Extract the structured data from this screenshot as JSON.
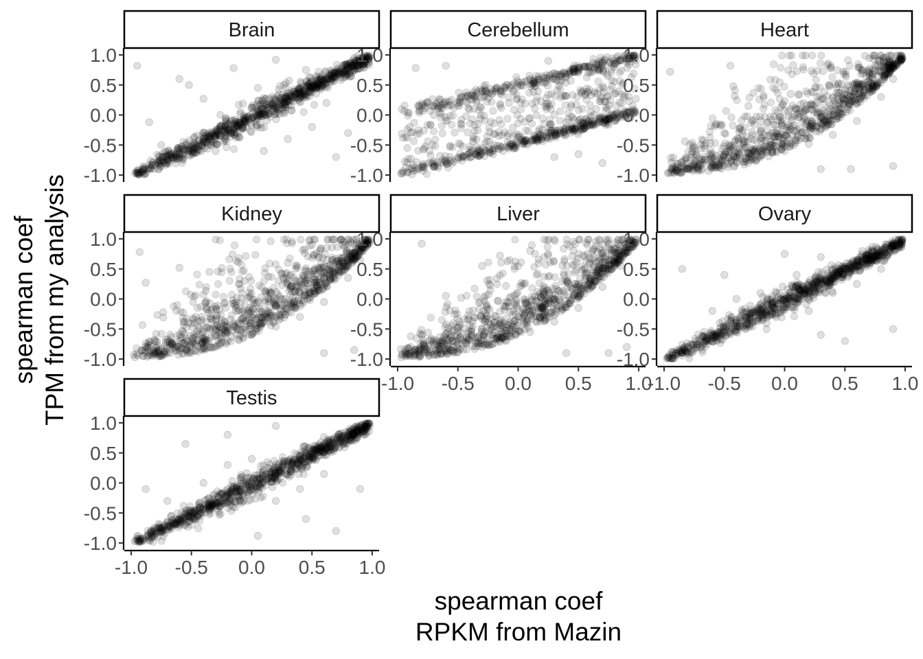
{
  "chart_data": {
    "type": "scatter",
    "layout": "facet_wrap",
    "ncol": 3,
    "xlabel_lines": [
      "spearman coef",
      "RPKM from Mazin"
    ],
    "ylabel_lines": [
      "spearman coef",
      "TPM from my analysis"
    ],
    "xlim": [
      -1.0,
      1.0
    ],
    "ylim": [
      -1.0,
      1.0
    ],
    "x_ticks": [
      -1.0,
      -0.5,
      0.0,
      0.5,
      1.0
    ],
    "y_ticks": [
      -1.0,
      -0.5,
      0.0,
      0.5,
      1.0
    ],
    "x_tick_labels": [
      "-1.0",
      "-0.5",
      "0.0",
      "0.5",
      "1.0"
    ],
    "y_tick_labels": [
      "-1.0",
      "-0.5",
      "0.0",
      "0.5",
      "1.0"
    ],
    "point_color": "#000000",
    "point_alpha": 0.12,
    "grid": false,
    "legend": "none",
    "panels": [
      {
        "name": "Brain",
        "pattern": "diagonal",
        "points": [
          [
            -0.97,
            -0.97
          ],
          [
            -0.95,
            -0.96
          ],
          [
            -0.9,
            -0.92
          ],
          [
            -0.85,
            -0.88
          ],
          [
            -0.8,
            -0.83
          ],
          [
            -0.7,
            -0.73
          ],
          [
            -0.6,
            -0.64
          ],
          [
            -0.5,
            -0.55
          ],
          [
            -0.4,
            -0.46
          ],
          [
            -0.3,
            -0.37
          ],
          [
            -0.2,
            -0.26
          ],
          [
            -0.1,
            -0.16
          ],
          [
            0.0,
            -0.06
          ],
          [
            0.1,
            0.03
          ],
          [
            0.2,
            0.13
          ],
          [
            0.3,
            0.24
          ],
          [
            0.4,
            0.35
          ],
          [
            0.5,
            0.47
          ],
          [
            0.6,
            0.58
          ],
          [
            0.7,
            0.69
          ],
          [
            0.8,
            0.8
          ],
          [
            0.9,
            0.9
          ],
          [
            0.97,
            0.97
          ],
          [
            -0.95,
            0.82
          ],
          [
            -0.85,
            -0.12
          ],
          [
            -0.75,
            -0.5
          ],
          [
            -0.6,
            0.6
          ],
          [
            -0.52,
            0.5
          ],
          [
            -0.4,
            0.27
          ],
          [
            -0.3,
            -0.6
          ],
          [
            -0.15,
            0.78
          ],
          [
            0.05,
            0.45
          ],
          [
            0.1,
            -0.6
          ],
          [
            0.2,
            0.92
          ],
          [
            0.3,
            -0.4
          ],
          [
            0.45,
            0.75
          ],
          [
            0.5,
            -0.2
          ],
          [
            0.62,
            0.2
          ],
          [
            0.7,
            -0.7
          ],
          [
            0.8,
            -0.3
          ],
          [
            0.85,
            0.95
          ]
        ]
      },
      {
        "name": "Cerebellum",
        "pattern": "band",
        "points": [
          [
            -0.97,
            -0.97
          ],
          [
            -0.9,
            -0.9
          ],
          [
            -0.8,
            -0.86
          ],
          [
            -0.6,
            -0.76
          ],
          [
            -0.4,
            -0.63
          ],
          [
            -0.2,
            -0.5
          ],
          [
            0.0,
            -0.37
          ],
          [
            0.2,
            -0.25
          ],
          [
            0.4,
            -0.12
          ],
          [
            0.6,
            0.05
          ],
          [
            0.8,
            0.35
          ],
          [
            0.95,
            0.97
          ],
          [
            -0.9,
            -0.2
          ],
          [
            -0.7,
            0.0
          ],
          [
            -0.5,
            0.2
          ],
          [
            -0.3,
            0.4
          ],
          [
            -0.1,
            0.5
          ],
          [
            0.1,
            0.6
          ],
          [
            0.3,
            0.7
          ],
          [
            0.5,
            0.78
          ],
          [
            0.7,
            0.85
          ],
          [
            0.9,
            0.93
          ],
          [
            -0.85,
            0.78
          ],
          [
            -0.6,
            0.82
          ],
          [
            0.25,
            0.9
          ],
          [
            0.3,
            -0.7
          ],
          [
            0.5,
            -0.65
          ],
          [
            0.7,
            -0.8
          ]
        ]
      },
      {
        "name": "Heart",
        "pattern": "curve",
        "points": [
          [
            -0.97,
            -0.97
          ],
          [
            -0.9,
            -0.94
          ],
          [
            -0.8,
            -0.9
          ],
          [
            -0.6,
            -0.85
          ],
          [
            -0.4,
            -0.78
          ],
          [
            -0.2,
            -0.7
          ],
          [
            0.0,
            -0.6
          ],
          [
            0.2,
            -0.48
          ],
          [
            0.4,
            -0.33
          ],
          [
            0.6,
            -0.1
          ],
          [
            0.8,
            0.3
          ],
          [
            0.9,
            0.6
          ],
          [
            0.96,
            0.95
          ],
          [
            -0.5,
            -0.3
          ],
          [
            -0.2,
            -0.1
          ],
          [
            0.1,
            0.1
          ],
          [
            0.4,
            0.3
          ],
          [
            0.6,
            0.5
          ],
          [
            0.7,
            0.7
          ],
          [
            0.8,
            0.8
          ],
          [
            -0.95,
            0.72
          ],
          [
            -0.45,
            0.82
          ],
          [
            -0.3,
            0.15
          ],
          [
            0.05,
            0.35
          ],
          [
            0.3,
            -0.9
          ],
          [
            0.55,
            -0.9
          ],
          [
            0.9,
            -0.85
          ]
        ]
      },
      {
        "name": "Kidney",
        "pattern": "curve",
        "points": [
          [
            -0.97,
            -0.97
          ],
          [
            -0.9,
            -0.95
          ],
          [
            -0.8,
            -0.92
          ],
          [
            -0.6,
            -0.86
          ],
          [
            -0.4,
            -0.8
          ],
          [
            -0.2,
            -0.7
          ],
          [
            0.0,
            -0.6
          ],
          [
            0.2,
            -0.46
          ],
          [
            0.4,
            -0.3
          ],
          [
            0.6,
            -0.05
          ],
          [
            0.8,
            0.35
          ],
          [
            0.9,
            0.65
          ],
          [
            0.96,
            0.97
          ],
          [
            -0.3,
            -0.5
          ],
          [
            0.0,
            -0.3
          ],
          [
            0.2,
            -0.1
          ],
          [
            0.4,
            0.1
          ],
          [
            0.6,
            0.35
          ],
          [
            0.75,
            0.6
          ],
          [
            -0.93,
            0.78
          ],
          [
            -0.88,
            0.27
          ],
          [
            -0.6,
            0.52
          ],
          [
            -0.35,
            0.45
          ],
          [
            -0.1,
            0.33
          ],
          [
            0.3,
            0.6
          ],
          [
            0.5,
            0.9
          ],
          [
            0.6,
            -0.9
          ],
          [
            0.85,
            -0.85
          ]
        ]
      },
      {
        "name": "Liver",
        "pattern": "curve",
        "points": [
          [
            -0.97,
            -0.97
          ],
          [
            -0.9,
            -0.95
          ],
          [
            -0.7,
            -0.93
          ],
          [
            -0.5,
            -0.88
          ],
          [
            -0.3,
            -0.8
          ],
          [
            -0.1,
            -0.7
          ],
          [
            0.1,
            -0.55
          ],
          [
            0.3,
            -0.38
          ],
          [
            0.5,
            -0.15
          ],
          [
            0.7,
            0.2
          ],
          [
            0.85,
            0.55
          ],
          [
            0.95,
            0.96
          ],
          [
            -0.5,
            -0.6
          ],
          [
            -0.2,
            -0.4
          ],
          [
            0.1,
            -0.2
          ],
          [
            0.3,
            0.0
          ],
          [
            0.5,
            0.25
          ],
          [
            0.7,
            0.6
          ],
          [
            -0.8,
            0.92
          ],
          [
            -0.6,
            0.05
          ],
          [
            -0.3,
            0.55
          ],
          [
            -0.15,
            0.72
          ],
          [
            0.1,
            0.8
          ],
          [
            0.4,
            -0.9
          ],
          [
            0.75,
            -0.9
          ],
          [
            0.9,
            -0.8
          ]
        ]
      },
      {
        "name": "Ovary",
        "pattern": "diagonal",
        "points": [
          [
            -0.97,
            -0.97
          ],
          [
            -0.9,
            -0.9
          ],
          [
            -0.8,
            -0.8
          ],
          [
            -0.6,
            -0.6
          ],
          [
            -0.4,
            -0.4
          ],
          [
            -0.2,
            -0.2
          ],
          [
            0.0,
            0.0
          ],
          [
            0.2,
            0.2
          ],
          [
            0.4,
            0.4
          ],
          [
            0.6,
            0.6
          ],
          [
            0.8,
            0.8
          ],
          [
            0.97,
            0.97
          ],
          [
            -0.6,
            -0.2
          ],
          [
            -0.4,
            0.0
          ],
          [
            -0.2,
            0.1
          ],
          [
            0.1,
            0.4
          ],
          [
            0.3,
            0.7
          ],
          [
            0.2,
            -0.2
          ],
          [
            0.4,
            0.1
          ],
          [
            0.6,
            0.25
          ],
          [
            0.8,
            0.5
          ],
          [
            -0.85,
            0.5
          ],
          [
            -0.5,
            0.4
          ],
          [
            0.0,
            0.75
          ],
          [
            0.3,
            -0.6
          ],
          [
            0.5,
            -0.7
          ],
          [
            0.9,
            -0.5
          ]
        ]
      },
      {
        "name": "Testis",
        "pattern": "diagonal",
        "points": [
          [
            -0.97,
            -0.97
          ],
          [
            -0.9,
            -0.92
          ],
          [
            -0.8,
            -0.83
          ],
          [
            -0.6,
            -0.63
          ],
          [
            -0.4,
            -0.43
          ],
          [
            -0.2,
            -0.22
          ],
          [
            0.0,
            -0.02
          ],
          [
            0.2,
            0.18
          ],
          [
            0.4,
            0.38
          ],
          [
            0.6,
            0.58
          ],
          [
            0.8,
            0.78
          ],
          [
            0.96,
            0.95
          ],
          [
            -0.7,
            -0.3
          ],
          [
            -0.4,
            0.0
          ],
          [
            -0.2,
            0.3
          ],
          [
            0.0,
            0.4
          ],
          [
            0.2,
            -0.3
          ],
          [
            0.4,
            -0.1
          ],
          [
            0.6,
            0.15
          ],
          [
            -0.88,
            -0.1
          ],
          [
            -0.55,
            0.65
          ],
          [
            -0.2,
            0.8
          ],
          [
            0.2,
            0.95
          ],
          [
            0.05,
            -0.88
          ],
          [
            0.45,
            -0.6
          ],
          [
            0.7,
            -0.8
          ],
          [
            0.9,
            -0.1
          ]
        ]
      }
    ]
  }
}
